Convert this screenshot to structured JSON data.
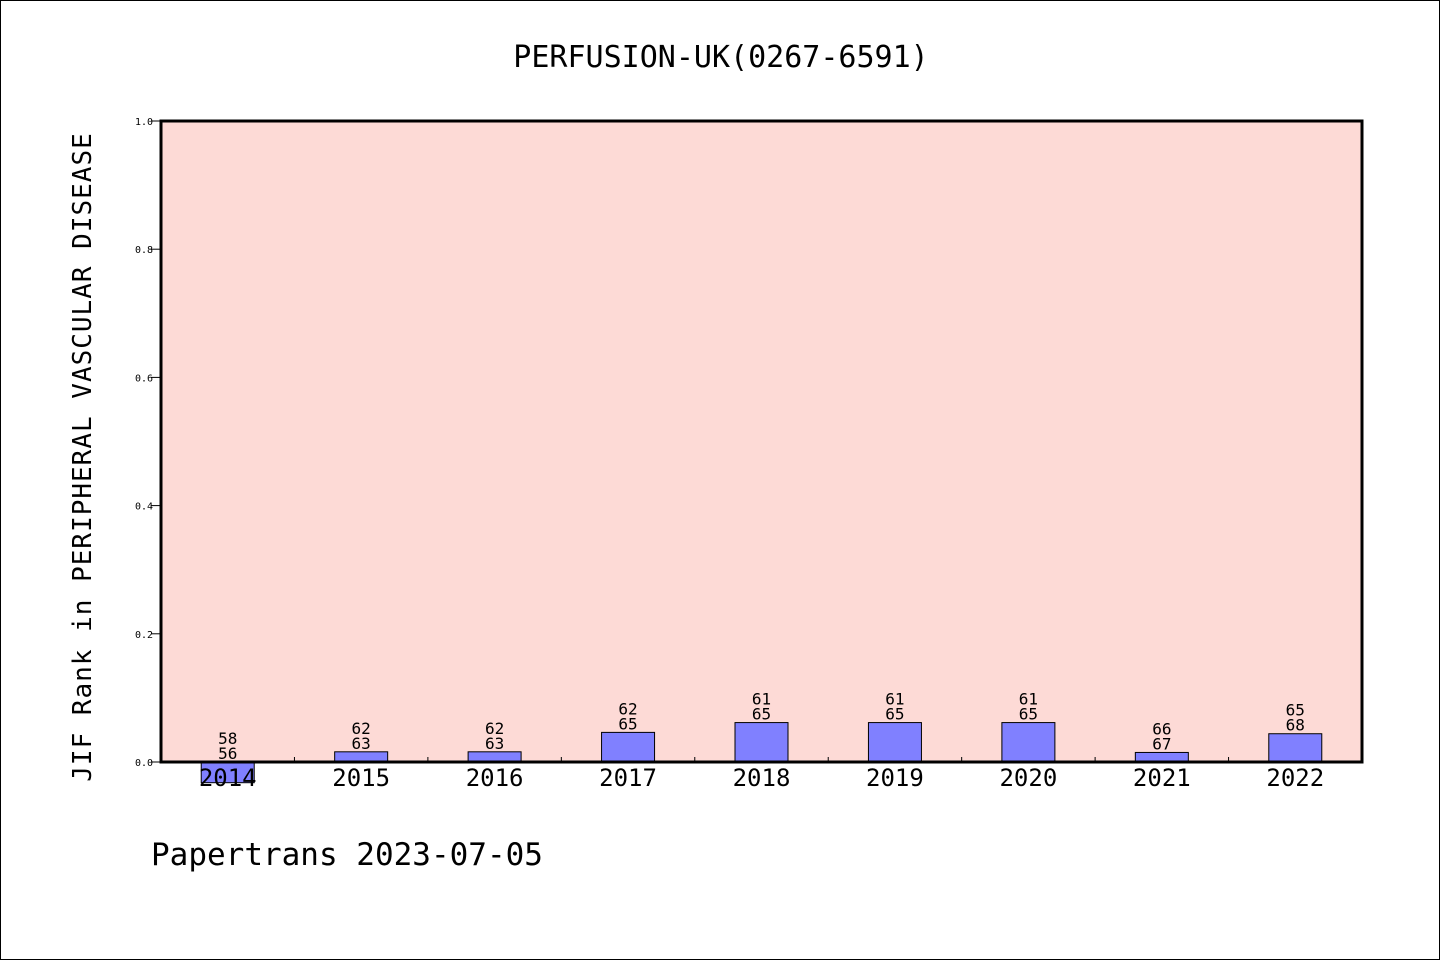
{
  "chart_data": {
    "type": "bar",
    "title": "PERFUSION-UK(0267-6591)",
    "xlabel": "",
    "ylabel": "JIF Rank in PERIPHERAL VASCULAR DISEASE",
    "ylim": [
      0,
      1
    ],
    "yticks": [
      "0.0",
      "0.2",
      "0.4",
      "0.6",
      "0.8",
      "1.0"
    ],
    "categories": [
      "2014",
      "2015",
      "2016",
      "2017",
      "2018",
      "2019",
      "2020",
      "2021",
      "2022"
    ],
    "values": [
      -0.0323,
      0.0159,
      0.0159,
      0.0462,
      0.0615,
      0.0615,
      0.0615,
      0.0149,
      0.0441
    ],
    "rank": [
      "58",
      "62",
      "62",
      "62",
      "61",
      "61",
      "61",
      "66",
      "65"
    ],
    "total": [
      "56",
      "63",
      "63",
      "65",
      "65",
      "65",
      "65",
      "67",
      "68"
    ],
    "grid": false,
    "colors": {
      "plot_background": "#fddad6",
      "bar_fill": "#8080ff",
      "bar_stroke": "#000000"
    }
  },
  "footer": {
    "text": "Papertrans 2023-07-05"
  }
}
